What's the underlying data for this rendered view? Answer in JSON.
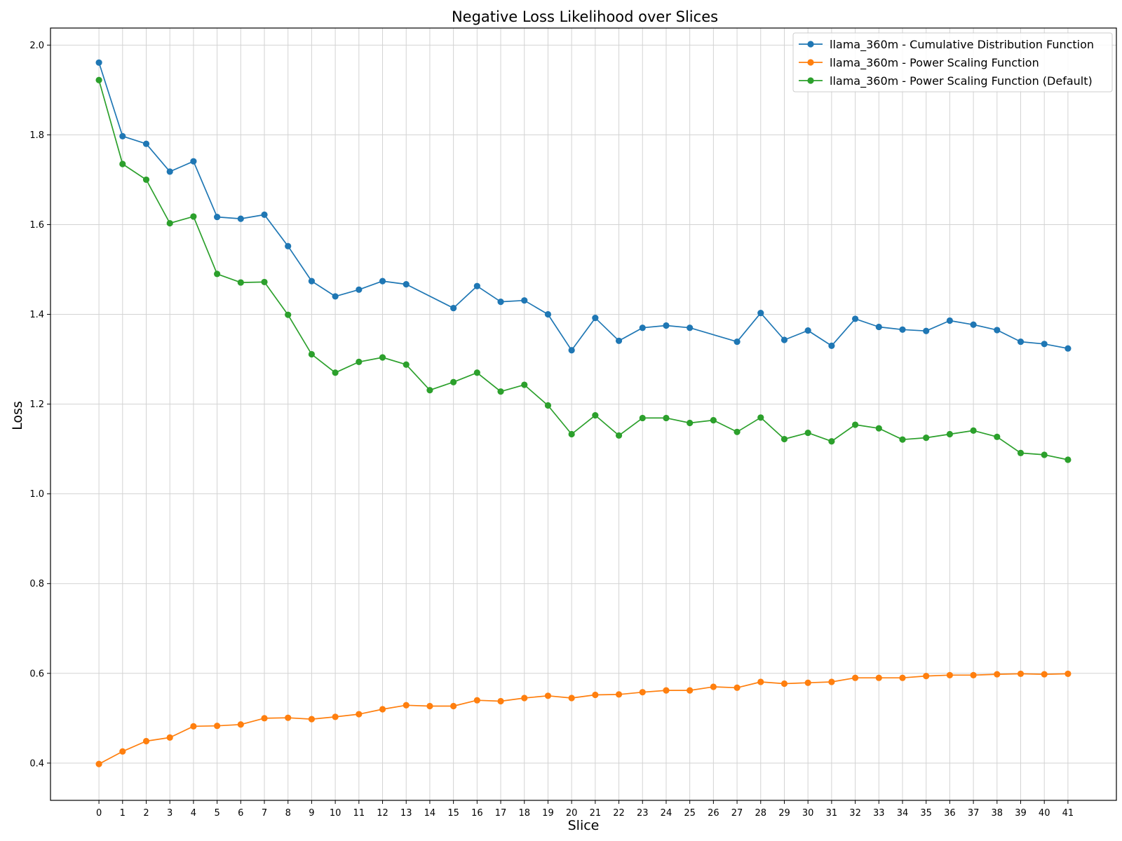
{
  "chart_data": {
    "type": "line",
    "title": "Negative Loss Likelihood over Slices",
    "xlabel": "Slice",
    "ylabel": "Loss",
    "x": [
      0,
      1,
      2,
      3,
      4,
      5,
      6,
      7,
      8,
      9,
      10,
      11,
      12,
      13,
      14,
      15,
      16,
      17,
      18,
      19,
      20,
      21,
      22,
      23,
      24,
      25,
      26,
      27,
      28,
      29,
      30,
      31,
      32,
      33,
      34,
      35,
      36,
      37,
      38,
      39,
      40,
      41
    ],
    "xlim": [
      -2.05,
      43.05
    ],
    "ylim": [
      0.317,
      2.038
    ],
    "yticks": [
      0.4,
      0.6,
      0.8,
      1.0,
      1.2,
      1.4,
      1.6,
      1.8,
      2.0
    ],
    "grid": true,
    "legend_position": "top-right",
    "series": [
      {
        "name": "llama_360m - Cumulative Distribution Function",
        "color": "#1f77b4",
        "x": [
          0,
          1,
          2,
          3,
          4,
          5,
          6,
          7,
          8,
          9,
          10,
          11,
          12,
          13,
          15,
          16,
          17,
          18,
          19,
          20,
          21,
          22,
          23,
          24,
          25,
          27,
          28,
          29,
          30,
          31,
          32,
          33,
          34,
          35,
          36,
          37,
          38,
          39,
          40,
          41
        ],
        "values": [
          1.961,
          1.797,
          1.78,
          1.718,
          1.741,
          1.617,
          1.613,
          1.622,
          1.552,
          1.474,
          1.44,
          1.455,
          1.474,
          1.467,
          1.414,
          1.463,
          1.428,
          1.431,
          1.4,
          1.32,
          1.392,
          1.341,
          1.37,
          1.375,
          1.37,
          1.339,
          1.403,
          1.343,
          1.364,
          1.33,
          1.39,
          1.372,
          1.366,
          1.363,
          1.386,
          1.377,
          1.365,
          1.339,
          1.334,
          1.324
        ]
      },
      {
        "name": "llama_360m - Power Scaling Function",
        "color": "#ff7f0e",
        "x": [
          0,
          1,
          2,
          3,
          4,
          5,
          6,
          7,
          8,
          9,
          10,
          11,
          12,
          13,
          14,
          15,
          16,
          17,
          18,
          19,
          20,
          21,
          22,
          23,
          24,
          25,
          26,
          27,
          28,
          29,
          30,
          31,
          32,
          33,
          34,
          35,
          36,
          37,
          38,
          39,
          40,
          41
        ],
        "values": [
          0.398,
          0.426,
          0.449,
          0.457,
          0.482,
          0.483,
          0.486,
          0.5,
          0.501,
          0.498,
          0.503,
          0.509,
          0.52,
          0.529,
          0.527,
          0.527,
          0.54,
          0.538,
          0.545,
          0.55,
          0.545,
          0.552,
          0.553,
          0.558,
          0.562,
          0.562,
          0.57,
          0.568,
          0.581,
          0.577,
          0.579,
          0.581,
          0.59,
          0.59,
          0.59,
          0.594,
          0.596,
          0.596,
          0.598,
          0.599,
          0.598,
          0.599
        ]
      },
      {
        "name": "llama_360m - Power Scaling Function (Default)",
        "color": "#2ca02c",
        "x": [
          0,
          1,
          2,
          3,
          4,
          5,
          6,
          7,
          8,
          9,
          10,
          11,
          12,
          13,
          14,
          15,
          16,
          17,
          18,
          19,
          20,
          21,
          22,
          23,
          24,
          25,
          26,
          27,
          28,
          29,
          30,
          31,
          32,
          33,
          34,
          35,
          36,
          37,
          38,
          39,
          40,
          41
        ],
        "values": [
          1.922,
          1.735,
          1.7,
          1.603,
          1.618,
          1.49,
          1.471,
          1.472,
          1.399,
          1.311,
          1.27,
          1.294,
          1.304,
          1.288,
          1.231,
          1.249,
          1.27,
          1.228,
          1.243,
          1.197,
          1.133,
          1.175,
          1.13,
          1.169,
          1.169,
          1.158,
          1.164,
          1.138,
          1.17,
          1.122,
          1.136,
          1.117,
          1.154,
          1.146,
          1.121,
          1.125,
          1.133,
          1.141,
          1.127,
          1.091,
          1.087,
          1.076
        ]
      }
    ]
  }
}
